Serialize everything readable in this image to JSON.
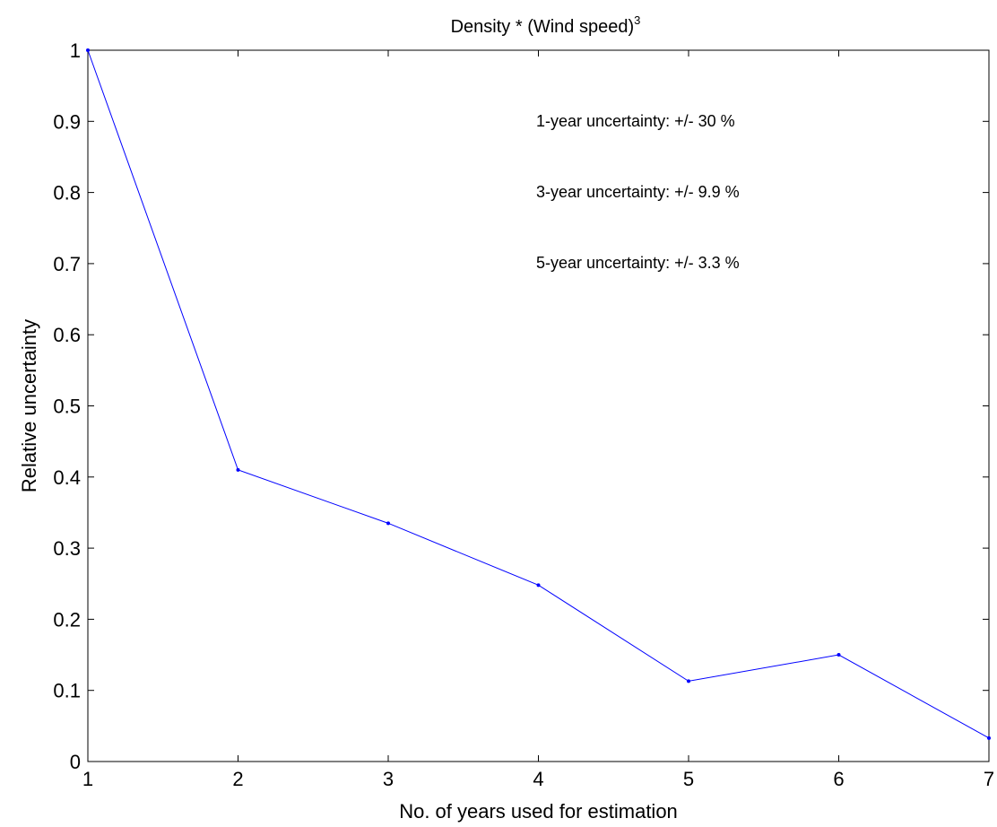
{
  "chart_data": {
    "type": "line",
    "title": {
      "main": "Density * (Wind speed)",
      "superscript": "3"
    },
    "xlabel": "No. of years used for estimation",
    "ylabel": "Relative uncertainty",
    "xlim": [
      1,
      7
    ],
    "ylim": [
      0,
      1
    ],
    "x_ticks": [
      "1",
      "2",
      "3",
      "4",
      "5",
      "6",
      "7"
    ],
    "y_ticks": [
      "0",
      "0.1",
      "0.2",
      "0.3",
      "0.4",
      "0.5",
      "0.6",
      "0.7",
      "0.8",
      "0.9",
      "1"
    ],
    "grid": false,
    "series": [
      {
        "x": [
          1,
          2,
          3,
          4,
          5,
          6,
          7
        ],
        "values": [
          1.0,
          0.41,
          0.335,
          0.248,
          0.113,
          0.15,
          0.033
        ],
        "color": "#0000ff",
        "marker": "dot"
      }
    ],
    "annotations": [
      "1-year uncertainty: +/- 30 %",
      "3-year uncertainty: +/- 9.9 %",
      "5-year uncertainty: +/- 3.3 %"
    ]
  },
  "colors": {
    "series_line": "#0000ff",
    "axes": "#000000",
    "background": "#ffffff"
  }
}
